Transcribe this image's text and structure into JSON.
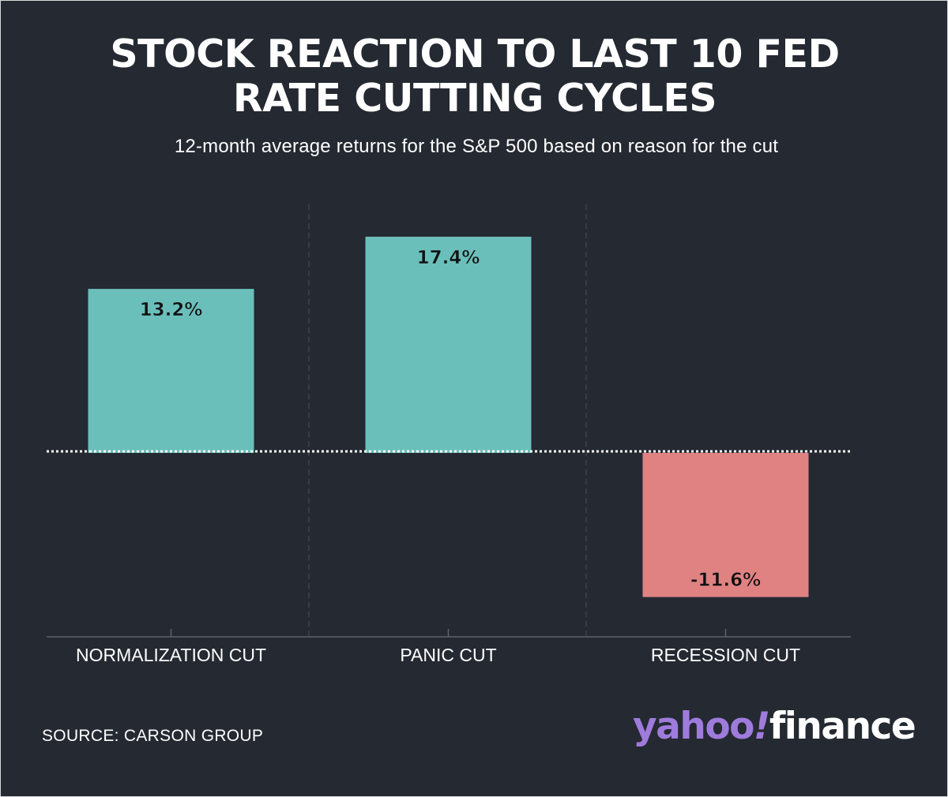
{
  "title_lines": [
    "STOCK REACTION TO LAST 10 FED",
    "RATE CUTTING CYCLES"
  ],
  "subtitle": "12-month average returns for the S&P 500 based on reason for the cut",
  "chart_data": {
    "type": "bar",
    "title": "STOCK REACTION TO LAST 10 FED RATE CUTTING CYCLES",
    "subtitle": "12-month average returns for the S&P 500 based on reason for the cut",
    "categories": [
      "NORMALIZATION CUT",
      "PANIC CUT",
      "RECESSION CUT"
    ],
    "values": [
      13.2,
      17.4,
      -11.6
    ],
    "data_labels": [
      "13.2%",
      "17.4%",
      "-11.6%"
    ],
    "unit": "%",
    "ylim": [
      -14.8,
      20.0
    ],
    "zero_line": "dotted",
    "grid": false,
    "colors": {
      "positive": "#6bbfba",
      "negative": "#e08282"
    }
  },
  "source": "SOURCE: CARSON GROUP",
  "logo": {
    "yahoo": "yahoo",
    "bang": "!",
    "finance": "finance"
  },
  "colors": {
    "background": "#242932",
    "text": "#ffffff",
    "brand_purple": "#9f7bdc"
  }
}
